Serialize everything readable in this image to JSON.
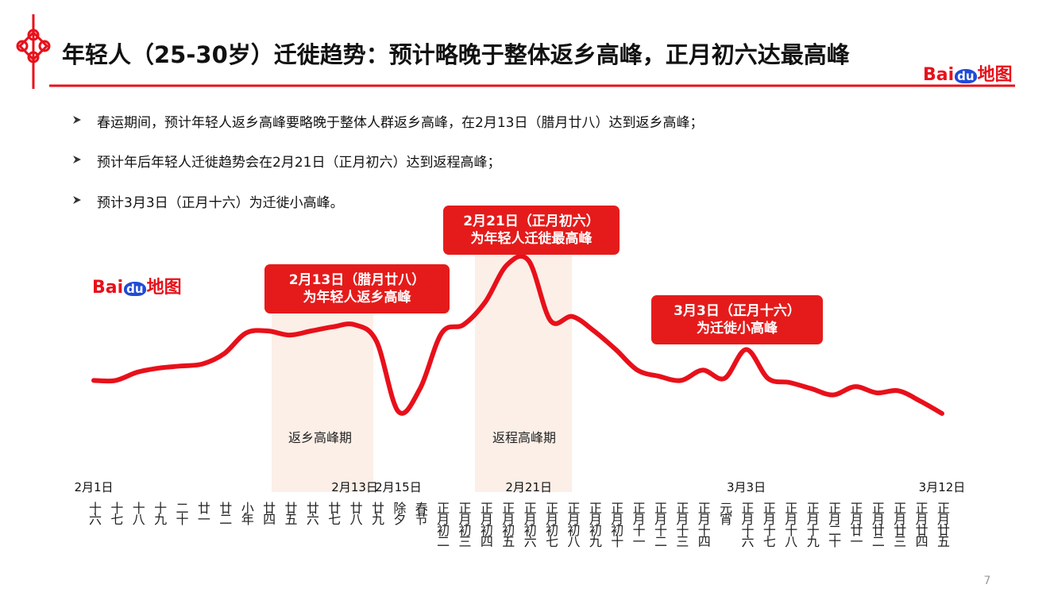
{
  "header": {
    "title": "年轻人（25-30岁）迁徙趋势：预计略晚于整体返乡高峰，正月初六达最高峰",
    "logo": [
      "Bai",
      "du",
      "地图"
    ]
  },
  "bullets": [
    "春运期间，预计年轻人返乡高峰要略晚于整体人群返乡高峰，在2月13日（腊月廿八）达到返乡高峰；",
    "预计年后年轻人迁徙趋势会在2月21日（正月初六）达到返程高峰；",
    "预计3月3日（正月十六）为迁徙小高峰。"
  ],
  "chart_data": {
    "type": "line",
    "color": "#e8101a",
    "logo": [
      "Bai",
      "du",
      "地图"
    ],
    "categories": [
      "2月1日",
      null,
      null,
      null,
      null,
      null,
      null,
      null,
      null,
      null,
      null,
      null,
      "2月13日",
      null,
      "2月15日",
      null,
      null,
      null,
      null,
      null,
      "2月21日",
      null,
      null,
      null,
      null,
      null,
      null,
      null,
      null,
      null,
      "3月3日",
      null,
      null,
      null,
      null,
      null,
      null,
      null,
      null,
      "3月12日"
    ],
    "lunar_labels": [
      "十六",
      "十七",
      "十八",
      "十九",
      "二十",
      "廿一",
      "廿二",
      "小年",
      "廿四",
      "廿五",
      "廿六",
      "廿七",
      "廿八",
      "廿九",
      "除夕",
      "春节",
      "正月初二",
      "正月初三",
      "正月初四",
      "正月初五",
      "正月初六",
      "正月初七",
      "正月初八",
      "正月初九",
      "正月初十",
      "正月十一",
      "正月十二",
      "正月十三",
      "正月十四",
      "元宵",
      "正月十六",
      "正月十七",
      "正月十八",
      "正月十九",
      "正月二十",
      "正月廿一",
      "正月廿二",
      "正月廿三",
      "正月廿四",
      "正月廿五"
    ],
    "values": [
      31,
      31,
      35,
      37,
      38,
      39,
      44,
      54,
      55,
      53,
      55,
      57,
      58,
      50,
      16,
      27,
      54,
      58,
      69,
      87,
      89,
      60,
      62,
      55,
      46,
      36,
      33,
      31,
      36,
      32,
      46,
      32,
      30,
      27,
      24,
      28,
      25,
      26,
      21,
      15
    ],
    "ylim": [
      0,
      100
    ],
    "bands": [
      "返乡高峰期",
      "返程高峰期"
    ],
    "annotations": [
      {
        "lines": [
          "2月13日（腊月廿八）",
          "为年轻人返乡高峰"
        ]
      },
      {
        "lines": [
          "2月21日（正月初六）",
          "为年轻人迁徙最高峰"
        ]
      },
      {
        "lines": [
          "3月3日（正月十六）",
          "为迁徙小高峰"
        ]
      }
    ]
  },
  "page_number": "7"
}
